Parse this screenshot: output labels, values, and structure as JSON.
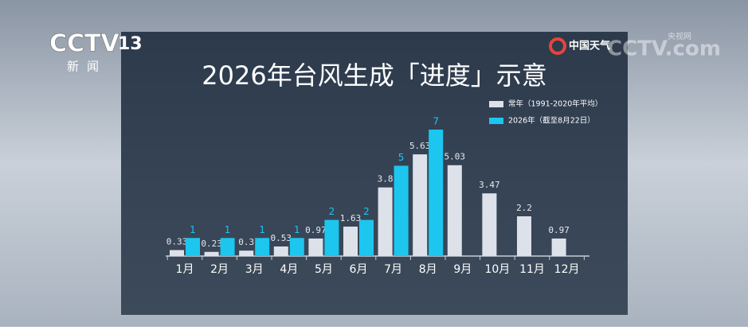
{
  "channel_logo": {
    "name": "CCTV",
    "number": "13",
    "subtitle": "新闻"
  },
  "weather_logo": "中国天气",
  "watermark": {
    "logo": "CCTV.com",
    "name": "央视网"
  },
  "chart_data": {
    "type": "bar",
    "title": "2026年台风生成「进度」示意",
    "categories": [
      "1月",
      "2月",
      "3月",
      "4月",
      "5月",
      "6月",
      "7月",
      "8月",
      "9月",
      "10月",
      "11月",
      "12月"
    ],
    "series": [
      {
        "name": "常年（1991-2020年平均）",
        "color": "#dde2ea",
        "values": [
          0.33,
          0.23,
          0.3,
          0.53,
          0.97,
          1.63,
          3.8,
          5.63,
          5.03,
          3.47,
          2.2,
          0.97
        ]
      },
      {
        "name": "2026年（截至8月22日）",
        "color": "#1cc6ef",
        "values": [
          1,
          1,
          1,
          1,
          2,
          2,
          5,
          7,
          null,
          null,
          null,
          null
        ]
      }
    ],
    "legend": "top-right"
  }
}
